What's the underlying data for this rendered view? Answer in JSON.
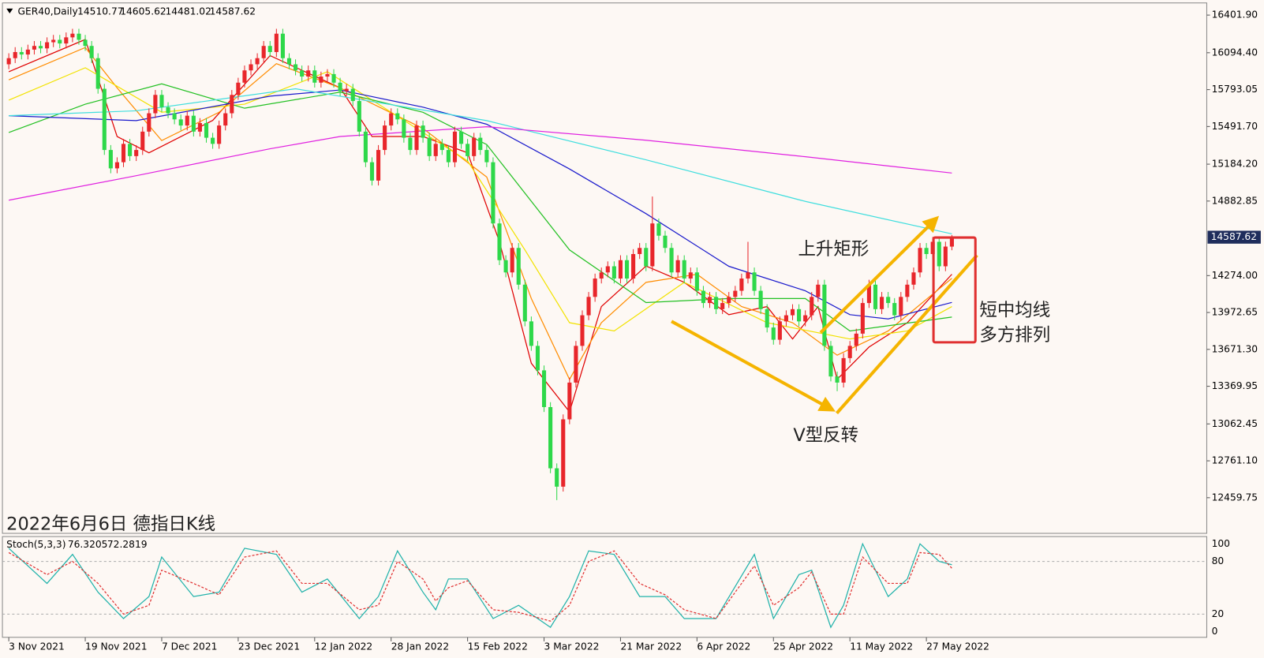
{
  "chart_data": [
    {
      "type": "candlestick",
      "symbol": "GER40,Daily",
      "header_values": [
        14510.77,
        14605.62,
        14481.02,
        14587.62
      ],
      "title": "2022年6月6日 德指日K线",
      "annotations": [
        "上升矩形",
        "V型反转",
        "短中均线",
        "多方排列"
      ],
      "up_color": "#e8262b",
      "down_color": "#2ed84a",
      "open": [
        16000,
        16050,
        16100,
        16080,
        16120,
        16150,
        16130,
        16180,
        16200,
        16170,
        16220,
        16250,
        16200,
        16150,
        16050,
        15800,
        15300,
        15150,
        15200,
        15350,
        15250,
        15300,
        15450,
        15600,
        15750,
        15650,
        15600,
        15550,
        15500,
        15580,
        15450,
        15520,
        15400,
        15350,
        15500,
        15600,
        15750,
        15850,
        15950,
        16000,
        16050,
        16150,
        16100,
        16250,
        16050,
        16000,
        15950,
        15900,
        15950,
        15850,
        15900,
        15920,
        15850,
        15780,
        15800,
        15700,
        15450,
        15200,
        15050,
        15300,
        15500,
        15600,
        15550,
        15400,
        15300,
        15500,
        15400,
        15250,
        15350,
        15300,
        15200,
        15450,
        15350,
        15250,
        15400,
        15300,
        15200,
        14700,
        14400,
        14300,
        14500,
        14200,
        13900,
        13700,
        13500,
        13200,
        12700,
        12550,
        13100,
        13400,
        13700,
        13950,
        14100,
        14250,
        14300,
        14350,
        14250,
        14400,
        14250,
        14450,
        14500,
        14350,
        14700,
        14600,
        14500,
        14300,
        14400,
        14250,
        14300,
        14150,
        14050,
        14100,
        14000,
        14050,
        14100,
        14150,
        14250,
        14300,
        14150,
        14000,
        13850,
        13750,
        13900,
        13950,
        14000,
        13900,
        13950,
        14100,
        14200,
        13700,
        13450,
        13400,
        13600,
        13700,
        13800,
        14050,
        14200,
        14000,
        14100,
        14050,
        13950,
        14100,
        14200,
        14300,
        14500,
        14450,
        14550,
        14350,
        14510.77
      ],
      "high": [
        16090,
        16140,
        16140,
        16160,
        16190,
        16190,
        16220,
        16240,
        16240,
        16260,
        16290,
        16290,
        16240,
        16190,
        16090,
        15840,
        15340,
        15240,
        15390,
        15390,
        15340,
        15490,
        15640,
        15790,
        15790,
        15690,
        15640,
        15590,
        15620,
        15620,
        15560,
        15560,
        15440,
        15540,
        15640,
        15790,
        15890,
        15990,
        16040,
        16090,
        16190,
        16190,
        16290,
        16290,
        16090,
        16040,
        15990,
        15990,
        15990,
        15940,
        15960,
        15960,
        15890,
        15840,
        15840,
        15740,
        15490,
        15240,
        15340,
        15540,
        15640,
        15640,
        15590,
        15440,
        15540,
        15540,
        15440,
        15390,
        15390,
        15340,
        15490,
        15490,
        15390,
        15440,
        15440,
        15340,
        15240,
        14740,
        14440,
        14540,
        14540,
        14240,
        13940,
        13740,
        13540,
        13240,
        12740,
        13140,
        13440,
        13740,
        13990,
        14140,
        14290,
        14340,
        14390,
        14390,
        14440,
        14440,
        14490,
        14540,
        14540,
        14920,
        14740,
        14640,
        14540,
        14440,
        14440,
        14340,
        14340,
        14190,
        14140,
        14140,
        14090,
        14140,
        14190,
        14290,
        14550,
        14340,
        14190,
        14040,
        13890,
        13940,
        13990,
        14040,
        14040,
        13990,
        14140,
        14240,
        14240,
        13740,
        13490,
        13640,
        13740,
        13840,
        14090,
        14240,
        14240,
        14140,
        14140,
        14090,
        14140,
        14240,
        14340,
        14540,
        14540,
        14590,
        14590,
        14551,
        14605.62
      ],
      "low": [
        15960,
        16010,
        16040,
        16040,
        16080,
        16090,
        16090,
        16140,
        16130,
        16130,
        16180,
        16160,
        16110,
        16010,
        15760,
        15260,
        15110,
        15110,
        15160,
        15210,
        15210,
        15260,
        15410,
        15560,
        15610,
        15560,
        15510,
        15460,
        15460,
        15410,
        15410,
        15360,
        15310,
        15310,
        15460,
        15560,
        15710,
        15810,
        15910,
        15960,
        16010,
        16060,
        16060,
        16010,
        15960,
        15910,
        15860,
        15860,
        15810,
        15810,
        15860,
        15810,
        15740,
        15740,
        15660,
        15410,
        15160,
        15010,
        15010,
        15260,
        15460,
        15510,
        15360,
        15260,
        15260,
        15360,
        15210,
        15210,
        15260,
        15160,
        15160,
        15310,
        15210,
        15210,
        15260,
        15160,
        14660,
        14360,
        14260,
        14260,
        14160,
        13860,
        13660,
        13460,
        13160,
        12660,
        12440,
        12510,
        13060,
        13360,
        13660,
        13910,
        14060,
        14210,
        14260,
        14210,
        14210,
        14210,
        14210,
        14410,
        14310,
        14310,
        14560,
        14460,
        14260,
        14260,
        14210,
        14210,
        14110,
        14010,
        14010,
        13960,
        13960,
        14010,
        14060,
        14110,
        14210,
        14110,
        13960,
        13810,
        13710,
        13710,
        13860,
        13910,
        13860,
        13860,
        13910,
        14060,
        13660,
        13410,
        13330,
        13360,
        13560,
        13660,
        13760,
        14010,
        13960,
        13960,
        14010,
        13910,
        13910,
        14060,
        14160,
        14260,
        14410,
        14410,
        14310,
        14310,
        14481.02
      ],
      "close": [
        16050,
        16100,
        16080,
        16120,
        16150,
        16130,
        16180,
        16200,
        16170,
        16220,
        16250,
        16200,
        16150,
        16050,
        15800,
        15300,
        15150,
        15200,
        15350,
        15250,
        15300,
        15450,
        15600,
        15750,
        15650,
        15600,
        15550,
        15500,
        15580,
        15450,
        15520,
        15400,
        15350,
        15500,
        15600,
        15750,
        15850,
        15950,
        16000,
        16050,
        16150,
        16100,
        16250,
        16050,
        16000,
        15950,
        15900,
        15950,
        15850,
        15900,
        15920,
        15850,
        15780,
        15800,
        15700,
        15450,
        15200,
        15050,
        15300,
        15500,
        15600,
        15550,
        15400,
        15300,
        15500,
        15400,
        15250,
        15350,
        15300,
        15200,
        15450,
        15350,
        15250,
        15400,
        15300,
        15200,
        14700,
        14400,
        14300,
        14500,
        14200,
        13900,
        13700,
        13500,
        13200,
        12700,
        12550,
        13100,
        13400,
        13700,
        13950,
        14100,
        14250,
        14300,
        14350,
        14250,
        14400,
        14250,
        14450,
        14500,
        14350,
        14700,
        14600,
        14500,
        14300,
        14400,
        14250,
        14300,
        14150,
        14050,
        14100,
        14000,
        14050,
        14100,
        14150,
        14250,
        14300,
        14150,
        14000,
        13850,
        13750,
        13900,
        13950,
        14000,
        13900,
        13950,
        14100,
        14200,
        13700,
        13450,
        13400,
        13600,
        13700,
        13800,
        14050,
        14200,
        14000,
        14100,
        14050,
        13950,
        14100,
        14200,
        14300,
        14500,
        14450,
        14550,
        14350,
        14511,
        14587.62
      ],
      "moving_averages": [
        {
          "color": "#e00000",
          "x": [
            0,
            12,
            17,
            22,
            32,
            41,
            52,
            57,
            65,
            72,
            77,
            82,
            88,
            93,
            100,
            106,
            113,
            119,
            123,
            127,
            130,
            135,
            141,
            148
          ],
          "values": [
            15939,
            16203,
            15410,
            15277,
            15542,
            16071,
            15807,
            15410,
            15410,
            15277,
            14550,
            13558,
            13161,
            14021,
            14352,
            14219,
            13955,
            14021,
            13756,
            14021,
            13426,
            13690,
            13889,
            14285
          ]
        },
        {
          "color": "#ff8c00",
          "x": [
            0,
            12,
            17,
            24,
            33,
            42,
            52,
            65,
            75,
            82,
            88,
            93,
            100,
            108,
            115,
            123,
            130,
            138,
            148
          ],
          "values": [
            15873,
            16137,
            15807,
            15377,
            15608,
            16005,
            15807,
            15476,
            15079,
            14087,
            13426,
            13889,
            14219,
            14285,
            14021,
            13889,
            13624,
            13822,
            14252
          ]
        },
        {
          "color": "#f2e200",
          "x": [
            0,
            12,
            24,
            37,
            50,
            60,
            72,
            81,
            88,
            95,
            106,
            119,
            132,
            141,
            148
          ],
          "values": [
            15707,
            15972,
            15608,
            15674,
            15939,
            15608,
            15211,
            14484,
            13889,
            13822,
            14219,
            13889,
            13756,
            13822,
            14021
          ]
        },
        {
          "color": "#22c022",
          "x": [
            0,
            12,
            24,
            37,
            52,
            65,
            75,
            88,
            100,
            113,
            125,
            132,
            148
          ],
          "values": [
            15443,
            15674,
            15840,
            15641,
            15773,
            15608,
            15344,
            14484,
            14054,
            14087,
            14087,
            13822,
            13935
          ]
        },
        {
          "color": "#1a1acc",
          "x": [
            0,
            20,
            41,
            52,
            65,
            75,
            88,
            100,
            113,
            125,
            132,
            138,
            148
          ],
          "values": [
            15580,
            15540,
            15740,
            15790,
            15650,
            15510,
            15145,
            14780,
            14350,
            14150,
            13955,
            13920,
            14055
          ]
        },
        {
          "color": "#40dede",
          "x": [
            0,
            20,
            45,
            75,
            100,
            125,
            148
          ],
          "values": [
            15580,
            15620,
            15800,
            15540,
            15220,
            14880,
            14615
          ]
        },
        {
          "color": "#e020e0",
          "x": [
            0,
            20,
            41,
            52,
            75,
            100,
            125,
            148
          ],
          "values": [
            14890,
            15090,
            15310,
            15410,
            15490,
            15380,
            15245,
            15112
          ]
        }
      ],
      "xlim": [
        -1,
        188
      ],
      "xticks": [
        {
          "value": 0,
          "label": "3 Nov 2021"
        },
        {
          "value": 12,
          "label": "19 Nov 2021"
        },
        {
          "value": 24,
          "label": "7 Dec 2021"
        },
        {
          "value": 36,
          "label": "23 Dec 2021"
        },
        {
          "value": 48,
          "label": "12 Jan 2022"
        },
        {
          "value": 60,
          "label": "28 Jan 2022"
        },
        {
          "value": 72,
          "label": "15 Feb 2022"
        },
        {
          "value": 84,
          "label": "3 Mar 2022"
        },
        {
          "value": 96,
          "label": "21 Mar 2022"
        },
        {
          "value": 108,
          "label": "6 Apr 2022"
        },
        {
          "value": 120,
          "label": "25 Apr 2022"
        },
        {
          "value": 132,
          "label": "11 May 2022"
        },
        {
          "value": 144,
          "label": "27 May 2022"
        }
      ],
      "ylim": [
        12168.7,
        16501.1
      ],
      "yticks": [
        {
          "value": 16401.9,
          "label": "16401.90"
        },
        {
          "value": 16094.4,
          "label": "16094.40"
        },
        15793.05,
        {
          "value": 15491.7,
          "label": "15491.70"
        },
        {
          "value": 15184.2,
          "label": "15184.20"
        },
        14882.85,
        {
          "value": 14274,
          "label": "14274.00"
        },
        13972.65,
        {
          "value": 13671.3,
          "label": "13671.30"
        },
        13369.95,
        13062.45,
        {
          "value": 12761.1,
          "label": "12761.10"
        },
        12459.75
      ],
      "last_price": 14587.62
    },
    {
      "type": "line",
      "title": "Stoch(5,3,3)",
      "header_values": [
        76.3205,
        72.2819
      ],
      "x": [
        0,
        6,
        10,
        14,
        18,
        22,
        24,
        29,
        33,
        37,
        42,
        46,
        50,
        55,
        58,
        61,
        65,
        67,
        69,
        72,
        76,
        80,
        85,
        88,
        91,
        95,
        99,
        103,
        106,
        111,
        117,
        120,
        124,
        126,
        129,
        131,
        134,
        138,
        141,
        143,
        146,
        148
      ],
      "series": [
        {
          "color": "#20b2aa",
          "dashed": false,
          "values": [
            95,
            55,
            88,
            45,
            15,
            40,
            85,
            40,
            45,
            95,
            88,
            45,
            60,
            15,
            40,
            92,
            45,
            25,
            60,
            60,
            15,
            30,
            5,
            40,
            92,
            88,
            40,
            40,
            15,
            15,
            88,
            15,
            65,
            70,
            5,
            30,
            100,
            40,
            60,
            100,
            80,
            76.3205
          ]
        },
        {
          "color": "#e03030",
          "dashed": true,
          "values": [
            90,
            65,
            80,
            55,
            20,
            30,
            70,
            55,
            42,
            85,
            92,
            55,
            55,
            25,
            30,
            80,
            60,
            35,
            50,
            58,
            25,
            22,
            12,
            30,
            80,
            92,
            55,
            42,
            25,
            15,
            75,
            30,
            50,
            68,
            20,
            20,
            85,
            55,
            55,
            90,
            88,
            72.2819
          ]
        }
      ],
      "xlim": [
        -1,
        188
      ],
      "ylim": [
        -6.4,
        108.3
      ],
      "yticks": [
        0,
        20,
        80,
        100
      ],
      "levels": [
        20,
        80
      ]
    }
  ]
}
